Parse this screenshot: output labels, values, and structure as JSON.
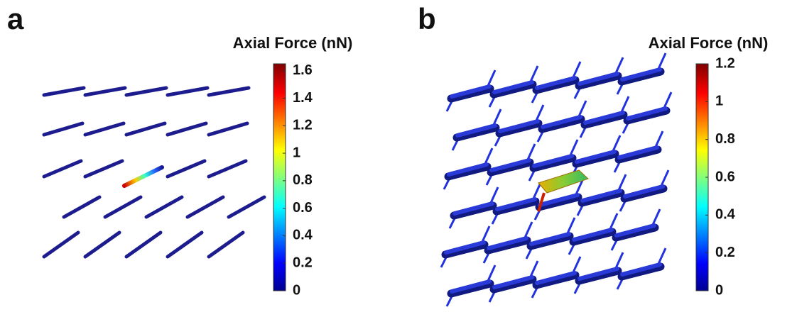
{
  "panels": [
    {
      "label": "a",
      "colorbar": {
        "title": "Axial Force (nN)",
        "lim": [
          0,
          1.65
        ],
        "ticks": [
          0,
          0.2,
          0.4,
          0.6,
          0.8,
          1,
          1.2,
          1.4,
          1.6
        ]
      }
    },
    {
      "label": "b",
      "colorbar": {
        "title": "Axial Force (nN)",
        "lim": [
          0,
          1.2
        ],
        "ticks": [
          0,
          0.2,
          0.4,
          0.6,
          0.8,
          1,
          1.2
        ]
      }
    }
  ]
}
